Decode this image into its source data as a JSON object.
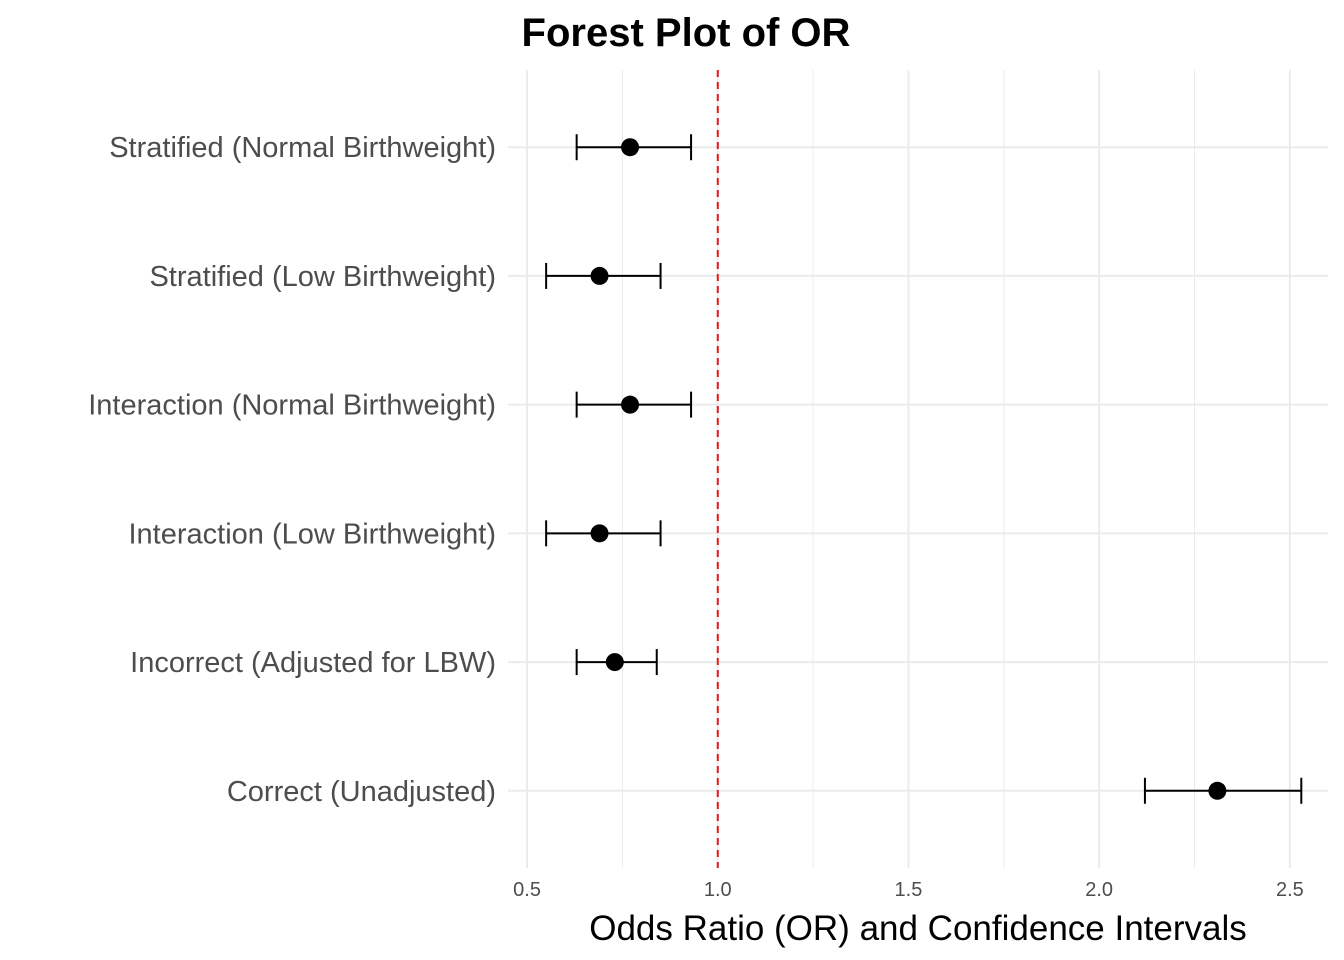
{
  "chart_data": {
    "type": "scatter",
    "title": "Forest Plot of OR",
    "xlabel": "Odds Ratio (OR) and Confidence Intervals",
    "ylabel": "",
    "xlim": [
      0.45,
      2.6
    ],
    "x_ticks": [
      0.5,
      1.0,
      1.5,
      2.0,
      2.5
    ],
    "x_tick_labels": [
      "0.5",
      "1.0",
      "1.5",
      "2.0",
      "2.5"
    ],
    "reference_line": {
      "x": 1.0,
      "style": "dashed",
      "color": "#e41a1c"
    },
    "grid": true,
    "legend": "none",
    "point_color": "#000000",
    "rows": [
      {
        "label": "Stratified (Normal Birthweight)",
        "or": 0.77,
        "lower": 0.63,
        "upper": 0.93
      },
      {
        "label": "Stratified (Low Birthweight)",
        "or": 0.69,
        "lower": 0.55,
        "upper": 0.85
      },
      {
        "label": "Interaction (Normal Birthweight)",
        "or": 0.77,
        "lower": 0.63,
        "upper": 0.93
      },
      {
        "label": "Interaction (Low Birthweight)",
        "or": 0.69,
        "lower": 0.55,
        "upper": 0.85
      },
      {
        "label": "Incorrect (Adjusted for LBW)",
        "or": 0.73,
        "lower": 0.63,
        "upper": 0.84
      },
      {
        "label": "Correct (Unadjusted)",
        "or": 2.31,
        "lower": 2.12,
        "upper": 2.53
      }
    ]
  }
}
